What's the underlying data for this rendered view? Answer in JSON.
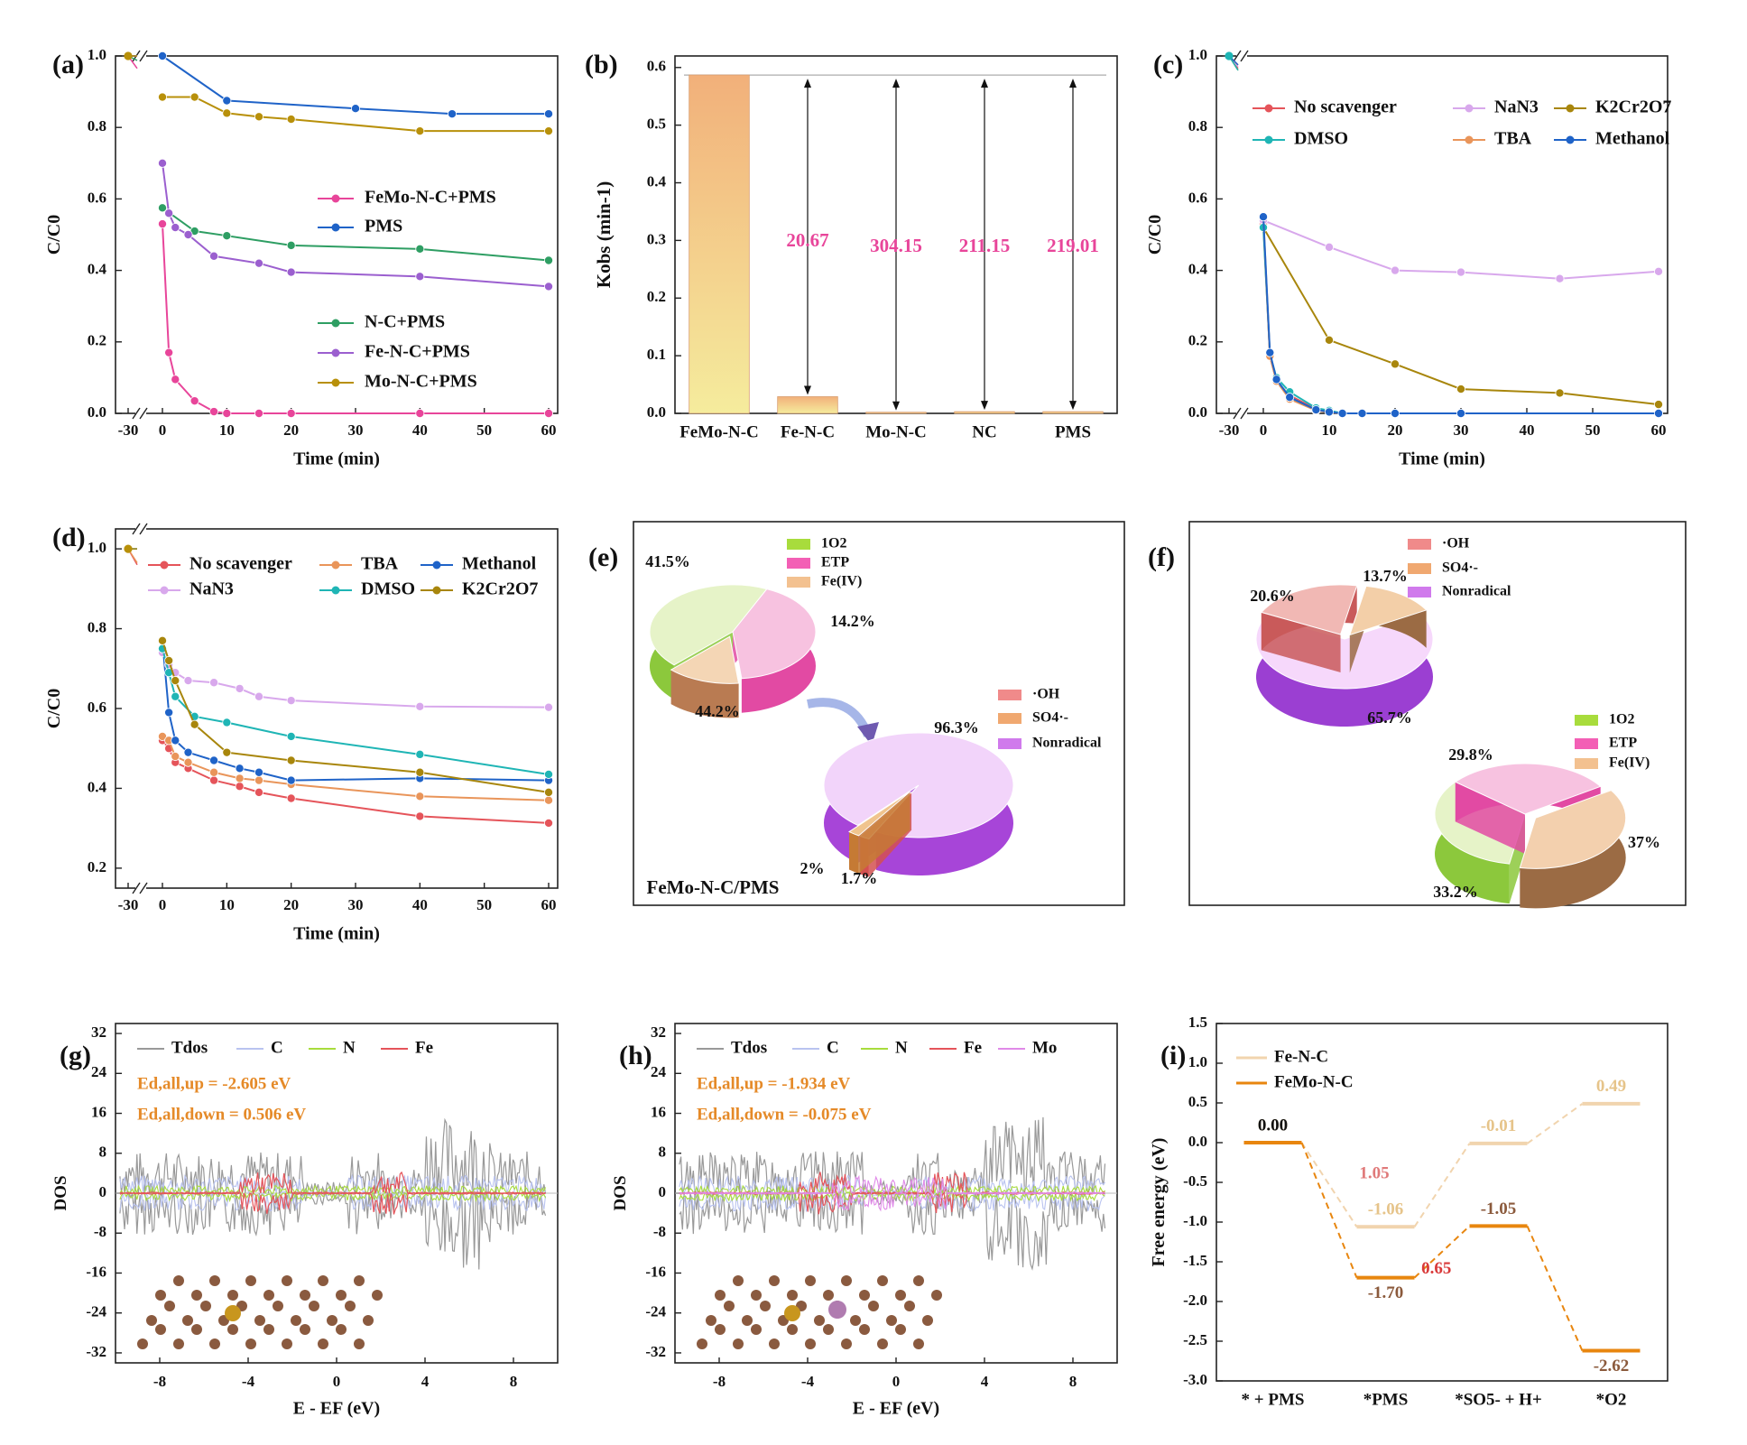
{
  "colors": {
    "pink": "#e8459a",
    "blue": "#1f63c8",
    "green": "#2e9e63",
    "purple": "#9b5fcf",
    "gold": "#b8900a",
    "red": "#e5545a",
    "orange": "#e9955a",
    "cyan": "#1fb5b5",
    "lavender": "#d8a8ec",
    "brown": "#a8860c",
    "gray": "#999999",
    "lightblue": "#b9c3f0",
    "lime": "#a8dc3c",
    "magenta": "#e08ae8",
    "text_pink": "#e8459a",
    "text_orange": "#e58a28",
    "deep_orange": "#e8860f",
    "light_orange": "#f1d4ae",
    "brown_dark": "#8b5a3c"
  },
  "chart_data": [
    {
      "id": "a",
      "panel_label": "(a)",
      "type": "line",
      "xlabel": "Time (min)",
      "ylabel": "C/C0",
      "xlim": [
        -30,
        60
      ],
      "ylim": [
        0,
        1.0
      ],
      "xticks": [
        "-30",
        "0",
        "10",
        "20",
        "30",
        "40",
        "50",
        "60"
      ],
      "yticks": [
        "0.0",
        "0.2",
        "0.4",
        "0.6",
        "0.8",
        "1.0"
      ],
      "series": [
        {
          "name": "FeMo-N-C+PMS",
          "color": "pink",
          "x": [
            0,
            1,
            2,
            5,
            8,
            10,
            15,
            20,
            40,
            60
          ],
          "y": [
            0.53,
            0.17,
            0.095,
            0.035,
            0.005,
            0.0,
            0.0,
            0.0,
            0.0,
            0.0
          ]
        },
        {
          "name": "PMS",
          "color": "blue",
          "x": [
            0,
            10,
            30,
            45,
            60
          ],
          "y": [
            1.0,
            0.875,
            0.853,
            0.838,
            0.838
          ]
        },
        {
          "name": "N-C+PMS",
          "color": "green",
          "x": [
            0,
            5,
            10,
            20,
            40,
            60
          ],
          "y": [
            0.575,
            0.51,
            0.497,
            0.47,
            0.46,
            0.428
          ]
        },
        {
          "name": "Fe-N-C+PMS",
          "color": "purple",
          "x": [
            0,
            1,
            2,
            4,
            8,
            15,
            20,
            40,
            60
          ],
          "y": [
            0.7,
            0.56,
            0.52,
            0.5,
            0.44,
            0.42,
            0.395,
            0.383,
            0.355
          ]
        },
        {
          "name": "Mo-N-C+PMS",
          "color": "gold",
          "x": [
            0,
            5,
            10,
            15,
            20,
            40,
            60
          ],
          "y": [
            0.885,
            0.885,
            0.84,
            0.83,
            0.823,
            0.79,
            0.79
          ]
        }
      ]
    },
    {
      "id": "b",
      "panel_label": "(b)",
      "type": "bar",
      "ylabel": "Kobs (min-1)",
      "ylim": [
        0,
        0.6
      ],
      "categories": [
        "FeMo-N-C",
        "Fe-N-C",
        "Mo-N-C",
        "NC",
        "PMS"
      ],
      "values": [
        0.587,
        0.029,
        0.002,
        0.003,
        0.003
      ],
      "yticks": [
        "0.0",
        "0.1",
        "0.2",
        "0.3",
        "0.4",
        "0.5",
        "0.6"
      ],
      "annotations": [
        "20.67",
        "304.15",
        "211.15",
        "219.01"
      ]
    },
    {
      "id": "c",
      "panel_label": "(c)",
      "type": "line",
      "xlabel": "Time (min)",
      "ylabel": "C/C0",
      "xlim": [
        -30,
        60
      ],
      "ylim": [
        0,
        1.0
      ],
      "xticks": [
        "-30",
        "0",
        "10",
        "20",
        "30",
        "40",
        "50",
        "60"
      ],
      "yticks": [
        "0.0",
        "0.2",
        "0.4",
        "0.6",
        "0.8",
        "1.0"
      ],
      "series": [
        {
          "name": "No scavenger",
          "color": "red",
          "x": [
            0,
            1,
            2,
            4,
            8,
            10,
            12,
            15,
            20,
            30,
            60
          ],
          "y": [
            0.53,
            0.16,
            0.09,
            0.05,
            0.012,
            0.005,
            0.0,
            0.0,
            0.0,
            0.0,
            0.0
          ]
        },
        {
          "name": "NaN3",
          "color": "lavender",
          "x": [
            0,
            10,
            20,
            30,
            45,
            60
          ],
          "y": [
            0.54,
            0.465,
            0.4,
            0.395,
            0.377,
            0.397
          ]
        },
        {
          "name": "K2Cr2O7",
          "color": "brown",
          "x": [
            0,
            10,
            20,
            30,
            45,
            60
          ],
          "y": [
            0.52,
            0.205,
            0.138,
            0.068,
            0.057,
            0.025
          ]
        },
        {
          "name": "DMSO",
          "color": "cyan",
          "x": [
            0,
            1,
            2,
            4,
            8,
            10,
            12,
            15,
            20,
            30,
            60
          ],
          "y": [
            0.52,
            0.165,
            0.1,
            0.06,
            0.015,
            0.008,
            0.0,
            0.0,
            0.0,
            0.0,
            0.0
          ]
        },
        {
          "name": "TBA",
          "color": "orange",
          "x": [
            0,
            1,
            2,
            4,
            8,
            10,
            12,
            15,
            20,
            30,
            60
          ],
          "y": [
            0.55,
            0.16,
            0.09,
            0.04,
            0.008,
            0.003,
            0.0,
            0.0,
            0.0,
            0.0,
            0.0
          ]
        },
        {
          "name": "Methanol",
          "color": "blue",
          "x": [
            0,
            1,
            2,
            4,
            8,
            10,
            12,
            15,
            20,
            30,
            60
          ],
          "y": [
            0.55,
            0.17,
            0.095,
            0.045,
            0.01,
            0.004,
            0.0,
            0.0,
            0.0,
            0.0,
            0.0
          ]
        }
      ]
    },
    {
      "id": "d",
      "panel_label": "(d)",
      "type": "line",
      "xlabel": "Time (min)",
      "ylabel": "C/C0",
      "xlim": [
        -30,
        60
      ],
      "ylim": [
        0.15,
        1.05
      ],
      "xticks": [
        "-30",
        "0",
        "10",
        "20",
        "30",
        "40",
        "50",
        "60"
      ],
      "yticks": [
        "0.2",
        "0.4",
        "0.6",
        "0.8",
        "1.0"
      ],
      "series": [
        {
          "name": "No scavenger",
          "color": "red",
          "x": [
            0,
            1,
            2,
            4,
            8,
            12,
            15,
            20,
            40,
            60
          ],
          "y": [
            0.52,
            0.5,
            0.465,
            0.45,
            0.42,
            0.405,
            0.39,
            0.375,
            0.33,
            0.313
          ]
        },
        {
          "name": "TBA",
          "color": "orange",
          "x": [
            0,
            1,
            2,
            4,
            8,
            12,
            15,
            20,
            40,
            60
          ],
          "y": [
            0.53,
            0.52,
            0.48,
            0.465,
            0.44,
            0.425,
            0.42,
            0.41,
            0.38,
            0.37
          ]
        },
        {
          "name": "Methanol",
          "color": "blue",
          "x": [
            0,
            1,
            2,
            4,
            8,
            12,
            15,
            20,
            40,
            60
          ],
          "y": [
            0.77,
            0.59,
            0.52,
            0.49,
            0.47,
            0.45,
            0.44,
            0.42,
            0.425,
            0.42
          ]
        },
        {
          "name": "NaN3",
          "color": "lavender",
          "x": [
            0,
            1,
            2,
            4,
            8,
            12,
            15,
            20,
            40,
            60
          ],
          "y": [
            0.74,
            0.71,
            0.69,
            0.67,
            0.665,
            0.65,
            0.63,
            0.62,
            0.605,
            0.603
          ]
        },
        {
          "name": "DMSO",
          "color": "cyan",
          "x": [
            0,
            1,
            2,
            5,
            10,
            20,
            40,
            60
          ],
          "y": [
            0.75,
            0.69,
            0.63,
            0.58,
            0.565,
            0.53,
            0.485,
            0.435
          ]
        },
        {
          "name": "K2Cr2O7",
          "color": "brown",
          "x": [
            0,
            1,
            2,
            5,
            10,
            20,
            40,
            60
          ],
          "y": [
            0.77,
            0.72,
            0.67,
            0.56,
            0.49,
            0.47,
            0.44,
            0.39
          ]
        }
      ]
    },
    {
      "id": "e",
      "panel_label": "(e)",
      "type": "pie",
      "caption": "FeMo-N-C/PMS",
      "pies": [
        {
          "labels": [
            "1O2",
            "ETP",
            "Fe(IV)"
          ],
          "values": [
            44.2,
            41.5,
            14.2
          ],
          "value_labels": [
            "44.2%",
            "41.5%",
            "14.2%"
          ]
        },
        {
          "labels": [
            "·OH",
            "SO4·-",
            "Nonradical"
          ],
          "values": [
            1.7,
            2,
            96.3
          ],
          "value_labels": [
            "1.7%",
            "2%",
            "96.3%"
          ]
        }
      ]
    },
    {
      "id": "f",
      "panel_label": "(f)",
      "type": "pie",
      "pies": [
        {
          "labels": [
            "·OH",
            "SO4·-",
            "Nonradical"
          ],
          "values": [
            20.6,
            13.7,
            65.7
          ],
          "value_labels": [
            "20.6%",
            "13.7%",
            "65.7%"
          ]
        },
        {
          "labels": [
            "1O2",
            "ETP",
            "Fe(IV)"
          ],
          "values": [
            33.2,
            29.8,
            37
          ],
          "value_labels": [
            "33.2%",
            "29.8%",
            "37%"
          ]
        }
      ]
    },
    {
      "id": "g",
      "panel_label": "(g)",
      "type": "line",
      "xlabel": "E - EF (eV)",
      "ylabel": "DOS",
      "xlim": [
        -10,
        10
      ],
      "ylim": [
        -34,
        34
      ],
      "xticks": [
        "-8",
        "-4",
        "0",
        "4",
        "8"
      ],
      "yticks": [
        "32",
        "24",
        "16",
        "8",
        "0",
        "-8",
        "-16",
        "-24",
        "-32"
      ],
      "legend": [
        "Tdos",
        "C",
        "N",
        "Fe"
      ],
      "annotations": [
        "Ed,all,up = -2.605 eV",
        "Ed,all,down = 0.506 eV"
      ]
    },
    {
      "id": "h",
      "panel_label": "(h)",
      "type": "line",
      "xlabel": "E - EF (eV)",
      "ylabel": "DOS",
      "xlim": [
        -10,
        10
      ],
      "ylim": [
        -34,
        34
      ],
      "xticks": [
        "-8",
        "-4",
        "0",
        "4",
        "8"
      ],
      "yticks": [
        "32",
        "24",
        "16",
        "8",
        "0",
        "-8",
        "-16",
        "-24",
        "-32"
      ],
      "legend": [
        "Tdos",
        "C",
        "N",
        "Fe",
        "Mo"
      ],
      "annotations": [
        "Ed,all,up = -1.934 eV",
        "Ed,all,down = -0.075 eV"
      ]
    },
    {
      "id": "i",
      "panel_label": "(i)",
      "type": "line",
      "ylabel": "Free energy (eV)",
      "ylim": [
        -3.0,
        1.5
      ],
      "categories": [
        "* + PMS",
        "*PMS",
        "*SO5- + H+",
        "*O2"
      ],
      "yticks": [
        "1.5",
        "1.0",
        "0.5",
        "0.0",
        "-0.5",
        "-1.0",
        "-1.5",
        "-2.0",
        "-2.5",
        "-3.0"
      ],
      "series": [
        {
          "name": "Fe-N-C",
          "color": "light_orange",
          "values": [
            0.0,
            -1.06,
            -0.01,
            0.49
          ],
          "labels": [
            "0.00",
            "-1.06",
            "-0.01",
            "0.49"
          ]
        },
        {
          "name": "FeMo-N-C",
          "color": "deep_orange",
          "values": [
            0.0,
            -1.7,
            -1.05,
            -2.62
          ],
          "labels": [
            "0.00",
            "-1.70",
            "-1.05",
            "-2.62"
          ]
        }
      ],
      "annotations": [
        "1.05",
        "0.65"
      ]
    }
  ]
}
